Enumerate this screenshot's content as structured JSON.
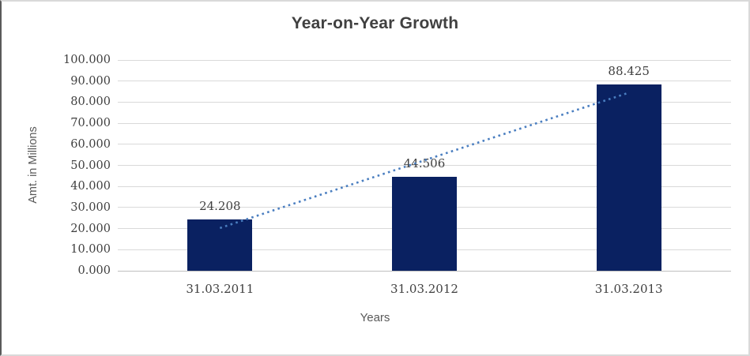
{
  "chart_data": {
    "type": "bar",
    "title": "Year-on-Year Growth",
    "categories": [
      "31.03.2011",
      "31.03.2012",
      "31.03.2013"
    ],
    "values": [
      24.208,
      44.506,
      88.425
    ],
    "data_labels": [
      "24.208",
      "44.506",
      "88.425"
    ],
    "xlabel": "Years",
    "ylabel": "Amt. in Millions",
    "ylim": [
      0,
      100
    ],
    "ytick_labels": [
      "0.000",
      "10.000",
      "20.000",
      "30.000",
      "40.000",
      "50.000",
      "60.000",
      "70.000",
      "80.000",
      "90.000",
      "100.000"
    ],
    "grid": true,
    "legend": false,
    "trendline": {
      "type": "linear",
      "style": "dotted",
      "start_value": 20.27,
      "end_value": 84.49
    },
    "colors": {
      "bar": "#0a2161",
      "trendline": "#4a7ec0",
      "gridline": "#d9d9d9",
      "tick_text": "#404040",
      "title_text": "#404040",
      "axis_title_text": "#595959"
    }
  }
}
